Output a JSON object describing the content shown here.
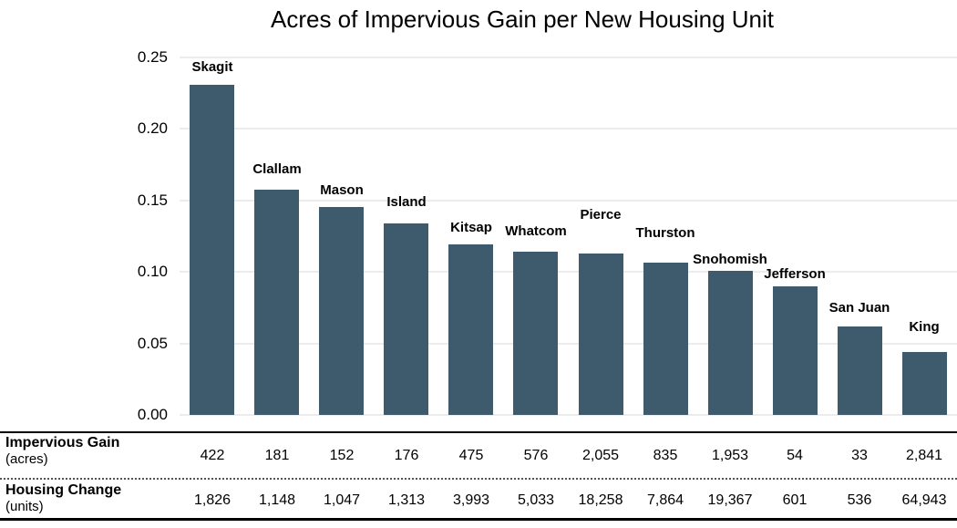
{
  "title": "Acres of Impervious Gain per New Housing Unit",
  "chart_data": {
    "type": "bar",
    "title": "Acres of Impervious Gain per New Housing Unit",
    "xlabel": "",
    "ylabel": "",
    "categories": [
      "Skagit",
      "Clallam",
      "Mason",
      "Island",
      "Kitsap",
      "Whatcom",
      "Pierce",
      "Thurston",
      "Snohomish",
      "Jefferson",
      "San Juan",
      "King"
    ],
    "values": [
      0.2311,
      0.1577,
      0.1452,
      0.134,
      0.119,
      0.1144,
      0.1126,
      0.1062,
      0.1008,
      0.0898,
      0.0616,
      0.0437
    ],
    "ylim": [
      0,
      0.25
    ],
    "yticks": [
      "0.00",
      "0.05",
      "0.10",
      "0.15",
      "0.20",
      "0.25"
    ],
    "grid": true,
    "legend": "none",
    "bar_color": "#3e5b6e",
    "gridline_color": "#ececec"
  },
  "table": {
    "rows": [
      {
        "label": "Impervious Gain",
        "sublabel": "(acres)",
        "values": [
          "422",
          "181",
          "152",
          "176",
          "475",
          "576",
          "2,055",
          "835",
          "1,953",
          "54",
          "33",
          "2,841"
        ]
      },
      {
        "label": "Housing Change",
        "sublabel": "(units)",
        "values": [
          "1,826",
          "1,148",
          "1,047",
          "1,313",
          "3,993",
          "5,033",
          "18,258",
          "7,864",
          "19,367",
          "601",
          "536",
          "64,943"
        ]
      }
    ]
  }
}
